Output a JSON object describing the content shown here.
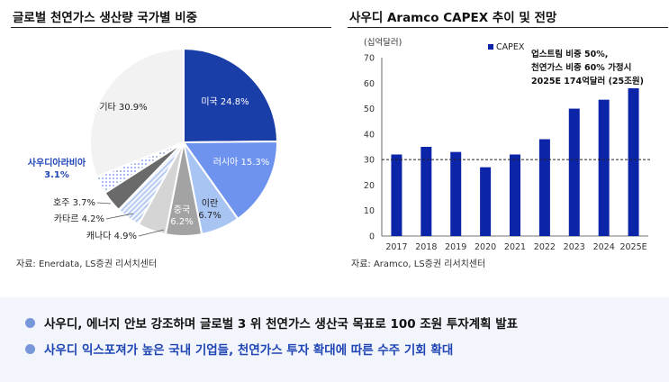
{
  "left_chart": {
    "title": "글로벌 천연가스 생산량 국가별 비중",
    "source": "자료: Enerdata, LS증권 리서치센터"
  },
  "right_chart": {
    "title": "사우디 Aramco CAPEX 추이 및 전망",
    "source": "자료: Aramco, LS증권 리서치센터",
    "unit": "(십억달러)",
    "legend": "CAPEX",
    "annotation": [
      "업스트림 비중 50%,",
      "천연가스 비중 60% 가정시",
      "2025E 174억달러 (25조원)"
    ]
  },
  "bullets": [
    "사우디, 에너지 안보 강조하며 글로벌 3 위 천연가스 생산국 목표로 100 조원 투자계획 발표",
    "사우디 익스포져가 높은 국내 기업들, 천연가스 투자 확대에 따른 수주 기회 확대"
  ],
  "colors": {
    "accent": "#1f45b5",
    "bar": "#0c25a8",
    "bullet_dot": "#7897db"
  },
  "chart_data": [
    {
      "type": "pie",
      "title": "글로벌 천연가스 생산량 국가별 비중",
      "slices": [
        {
          "label": "미국",
          "value": 24.8,
          "value_label": "24.8%",
          "color": "#1a3ea8"
        },
        {
          "label": "러시아",
          "value": 15.3,
          "value_label": "15.3%",
          "color": "#6e93ee"
        },
        {
          "label": "이란",
          "value": 6.7,
          "value_label": "6.7%",
          "color": "#a8c4f2"
        },
        {
          "label": "중국",
          "value": 6.2,
          "value_label": "6.2%",
          "color": "#a3a3a3"
        },
        {
          "label": "캐나다",
          "value": 4.9,
          "value_label": "4.9%",
          "color": "#d5d5d5"
        },
        {
          "label": "카타르",
          "value": 4.2,
          "value_label": "4.2%",
          "color": "#dfe7f8"
        },
        {
          "label": "호주",
          "value": 3.7,
          "value_label": "3.7%",
          "color": "#6a6a6a"
        },
        {
          "label": "사우디아라비아",
          "value": 3.1,
          "value_label": "3.1%",
          "color": "#b6cdf4"
        },
        {
          "label": "기타",
          "value": 30.9,
          "value_label": "30.9%",
          "color": "#f2f2f2"
        }
      ]
    },
    {
      "type": "bar",
      "title": "사우디 Aramco CAPEX 추이 및 전망",
      "ylabel": "(십억달러)",
      "categories": [
        "2017",
        "2018",
        "2019",
        "2020",
        "2021",
        "2022",
        "2023",
        "2024",
        "2025E"
      ],
      "series": [
        {
          "name": "CAPEX",
          "values": [
            32,
            35,
            33,
            27,
            32,
            38,
            50,
            53.5,
            58
          ]
        }
      ],
      "ylim": [
        0,
        70
      ],
      "yticks": [
        0,
        10,
        20,
        30,
        40,
        50,
        60,
        70
      ],
      "reference_line": 30
    }
  ]
}
